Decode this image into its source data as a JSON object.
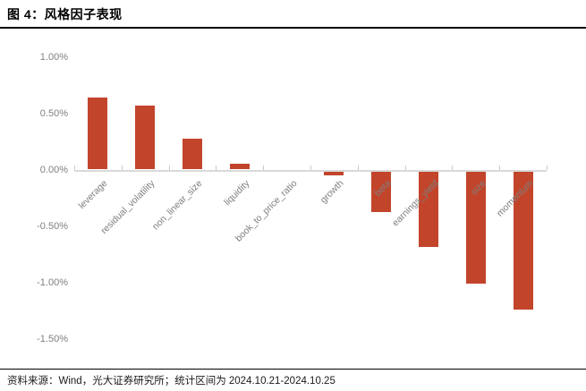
{
  "figure": {
    "title": "图 4：风格因子表现",
    "source_note": "资料来源：Wind，光大证券研究所；统计区间为 2024.10.21-2024.10.25"
  },
  "chart_data": {
    "type": "bar",
    "title": "风格因子表现",
    "categories": [
      "leverage",
      "residual_volatility",
      "non_linear_size",
      "liquidity",
      "book_to_price_ratio",
      "growth",
      "beta",
      "earnings_yield",
      "size",
      "momentum"
    ],
    "values": [
      0.64,
      0.57,
      0.27,
      0.05,
      -0.02,
      -0.05,
      -0.38,
      -0.69,
      -1.01,
      -1.24
    ],
    "value_unit": "%",
    "xlabel": "",
    "ylabel": "",
    "ylim": [
      -1.5,
      1.0
    ],
    "yticks": [
      {
        "value": 1.0,
        "label": "1.00%"
      },
      {
        "value": 0.5,
        "label": "0.50%"
      },
      {
        "value": 0.0,
        "label": "0.00%"
      },
      {
        "value": -0.5,
        "label": "-0.50%"
      },
      {
        "value": -1.0,
        "label": "-1.00%"
      },
      {
        "value": -1.5,
        "label": "-1.50%"
      }
    ],
    "grid": false,
    "legend": "none",
    "category_label_rotation_deg": 45,
    "colors": {
      "bar": "#C2452B",
      "axis_line": "#D9D9D9",
      "tick": "#C9C9C9",
      "axis_label": "#7F7F7F"
    }
  }
}
